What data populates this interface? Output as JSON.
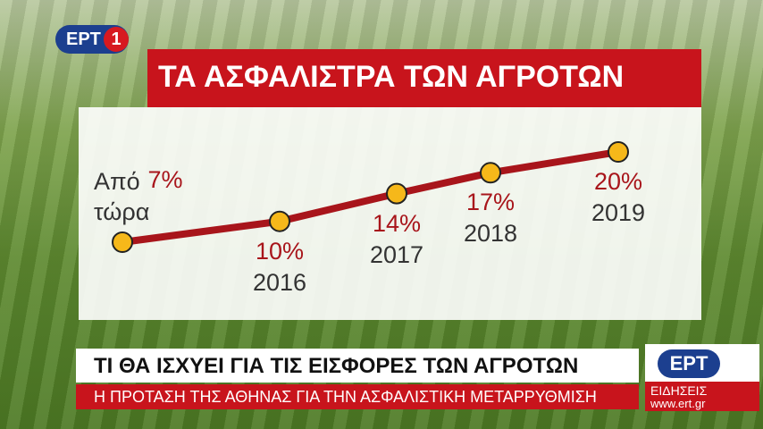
{
  "chart_data": {
    "type": "line",
    "title": "ΤΑ ΑΣΦΑΛΙΣΤΡΑ ΤΩΝ ΑΓΡΟΤΩΝ",
    "categories": [
      "Από τώρα",
      "2016",
      "2017",
      "2018",
      "2019"
    ],
    "series": [
      {
        "color": "#a8151b",
        "values": [
          7,
          10,
          14,
          17,
          20
        ],
        "value_labels": [
          "7%",
          "10%",
          "14%",
          "17%",
          "20%"
        ]
      }
    ]
  },
  "broadcast": {
    "logo": "ΕΡΤ",
    "channel": "1",
    "headline": "ΤΙ ΘΑ ΙΣΧΥΕΙ ΓΙΑ ΤΙΣ ΕΙΣΦΟΡΕΣ ΤΩΝ ΑΓΡΟΤΩΝ",
    "subheadline": "Η ΠΡΟΤΑΣΗ ΤΗΣ ΑΘΗΝΑΣ ΓΙΑ ΤΗΝ ΑΣΦΑΛΙΣΤΙΚΗ ΜΕΤΑΡΡΥΘΜΙΣΗ",
    "news_logo": "ΕΡΤ",
    "news_label": "ΕΙΔΗΣΕΙΣ",
    "url": "www.ert.gr"
  }
}
